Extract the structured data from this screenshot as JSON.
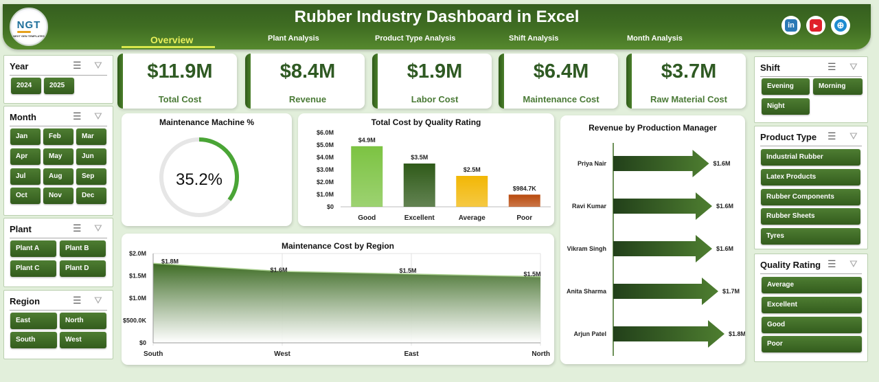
{
  "header": {
    "logo_text": "NGT",
    "logo_subtext": "NEXT GEN TEMPLATES",
    "title": "Rubber Industry Dashboard in Excel",
    "tabs": [
      "Overview",
      "Plant Analysis",
      "Product Type Analysis",
      "Shift Analysis",
      "Month Analysis"
    ],
    "active_tab": "Overview",
    "social": [
      {
        "icon": "linkedin-icon",
        "glyph": "in",
        "color": "#2a78b5"
      },
      {
        "icon": "youtube-icon",
        "glyph": "▶",
        "color": "#e0202a"
      },
      {
        "icon": "globe-icon",
        "glyph": "⊕",
        "color": "#1e8bd0"
      }
    ]
  },
  "slicers": {
    "year": {
      "title": "Year",
      "items": [
        "2024",
        "2025"
      ]
    },
    "month": {
      "title": "Month",
      "items": [
        "Jan",
        "Feb",
        "Mar",
        "Apr",
        "May",
        "Jun",
        "Jul",
        "Aug",
        "Sep",
        "Oct",
        "Nov",
        "Dec"
      ]
    },
    "plant": {
      "title": "Plant",
      "items": [
        "Plant A",
        "Plant B",
        "Plant C",
        "Plant D"
      ]
    },
    "region": {
      "title": "Region",
      "items": [
        "East",
        "North",
        "South",
        "West"
      ]
    },
    "shift": {
      "title": "Shift",
      "items": [
        "Evening",
        "Morning",
        "Night"
      ]
    },
    "product_type": {
      "title": "Product Type",
      "items": [
        "Industrial Rubber",
        "Latex Products",
        "Rubber Components",
        "Rubber Sheets",
        "Tyres"
      ]
    },
    "quality_rating": {
      "title": "Quality Rating",
      "items": [
        "Average",
        "Excellent",
        "Good",
        "Poor"
      ]
    }
  },
  "kpis": [
    {
      "value": "$11.9M",
      "label": "Total Cost"
    },
    {
      "value": "$8.4M",
      "label": "Revenue"
    },
    {
      "value": "$1.9M",
      "label": "Labor Cost"
    },
    {
      "value": "$6.4M",
      "label": "Maintenance Cost"
    },
    {
      "value": "$3.7M",
      "label": "Raw Material Cost"
    }
  ],
  "colors": {
    "primary": "#3f6d22",
    "accent": "#4aa536",
    "active_tab": "#e8f05a"
  },
  "chart_data": [
    {
      "type": "donut",
      "title": "Maintenance Machine %",
      "value": 35.2,
      "label": "35.2%"
    },
    {
      "type": "bar",
      "title": "Total Cost by Quality Rating",
      "categories": [
        "Good",
        "Excellent",
        "Average",
        "Poor"
      ],
      "values": [
        4.9,
        3.5,
        2.5,
        0.9847
      ],
      "data_labels": [
        "$4.9M",
        "$3.5M",
        "$2.5M",
        "$984.7K"
      ],
      "bar_colors": [
        "#7cc342",
        "#2f5a19",
        "#f2b705",
        "#b94a0d"
      ],
      "ylim": [
        0,
        6
      ],
      "yticks": [
        "$0",
        "$1.0M",
        "$2.0M",
        "$3.0M",
        "$4.0M",
        "$5.0M",
        "$6.0M"
      ],
      "xlabel": "",
      "ylabel": ""
    },
    {
      "type": "area",
      "title": "Maintenance Cost by Region",
      "categories": [
        "South",
        "West",
        "East",
        "North"
      ],
      "values": [
        1.78,
        1.6,
        1.54,
        1.48
      ],
      "data_labels": [
        "$1.8M",
        "$1.6M",
        "$1.5M",
        "$1.5M"
      ],
      "ylim": [
        0,
        2
      ],
      "yticks": [
        "$0",
        "$500.0K",
        "$1.0M",
        "$1.5M",
        "$2.0M"
      ],
      "grid": true
    },
    {
      "type": "bar",
      "orientation": "horizontal",
      "title": "Revenue by Production Manager",
      "categories": [
        "Priya Nair",
        "Ravi Kumar",
        "Vikram Singh",
        "Anita Sharma",
        "Arjun Patel"
      ],
      "values": [
        1.55,
        1.6,
        1.6,
        1.7,
        1.8
      ],
      "data_labels": [
        "$1.6M",
        "$1.6M",
        "$1.6M",
        "$1.7M",
        "$1.8M"
      ]
    }
  ]
}
